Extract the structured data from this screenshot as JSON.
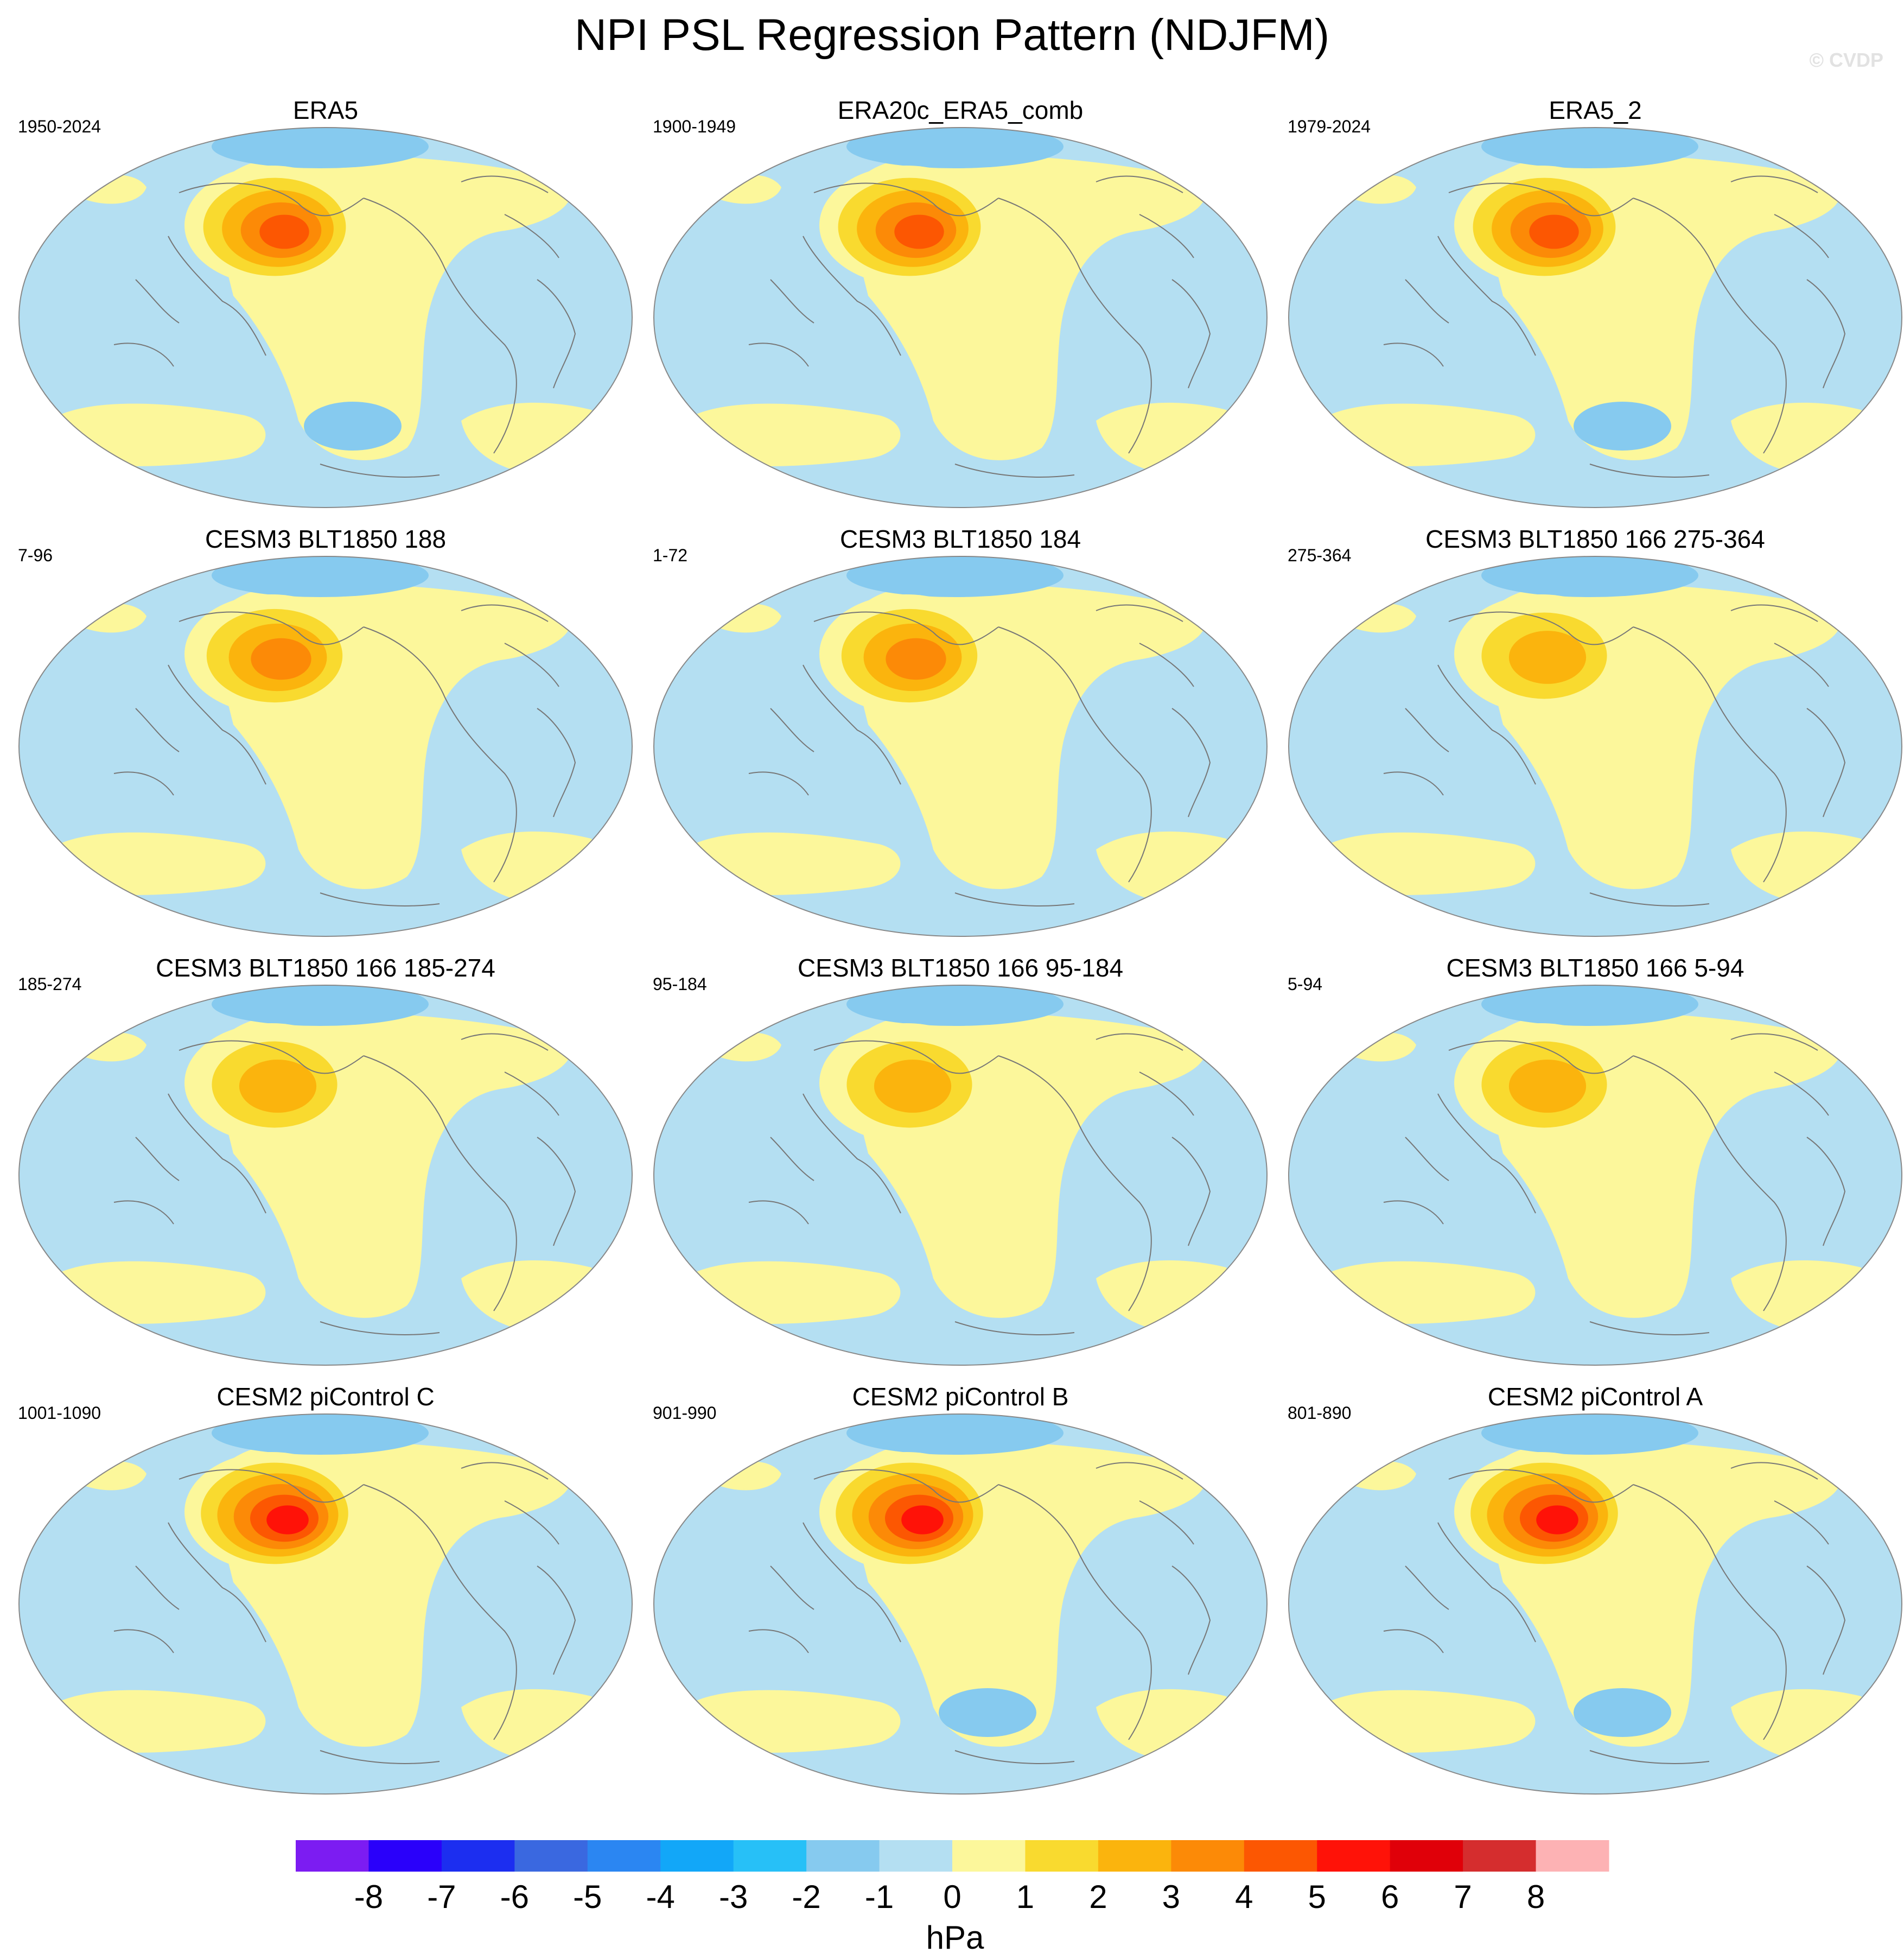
{
  "title": "NPI PSL Regression Pattern (NDJFM)",
  "watermark": "© CVDP",
  "colors": {
    "background": "#ffffff",
    "neg_light": "#b4dff2",
    "pos_light": "#fcf79b",
    "coast": "#777777",
    "outline": "#888888"
  },
  "panels": [
    {
      "title": "ERA5",
      "period": "1950-2024",
      "peak": 4.5,
      "south_low": -1.5
    },
    {
      "title": "ERA20c_ERA5_comb",
      "period": "1900-1949",
      "peak": 4.5,
      "south_low": 0
    },
    {
      "title": "ERA5_2",
      "period": "1979-2024",
      "peak": 4.5,
      "south_low": -2
    },
    {
      "title": "CESM3 BLT1850 188",
      "period": "7-96",
      "peak": 3.5,
      "south_low": 0
    },
    {
      "title": "CESM3 BLT1850 184",
      "period": "1-72",
      "peak": 3.5,
      "south_low": 0
    },
    {
      "title": "CESM3 BLT1850 166 275-364",
      "period": "275-364",
      "peak": 3.0,
      "south_low": 0
    },
    {
      "title": "CESM3 BLT1850 166 185-274",
      "period": "185-274",
      "peak": 3.0,
      "south_low": 0
    },
    {
      "title": "CESM3 BLT1850 166 95-184",
      "period": "95-184",
      "peak": 3.0,
      "south_low": 0
    },
    {
      "title": "CESM3 BLT1850 166 5-94",
      "period": "5-94",
      "peak": 3.0,
      "south_low": 0
    },
    {
      "title": "CESM2 piControl C",
      "period": "1001-1090",
      "peak": 5.5,
      "south_low": 0
    },
    {
      "title": "CESM2 piControl B",
      "period": "901-990",
      "peak": 5.5,
      "south_low": -1.5
    },
    {
      "title": "CESM2 piControl A",
      "period": "801-890",
      "peak": 5.5,
      "south_low": -1.5
    }
  ],
  "colorbar": {
    "units": "hPa",
    "labels": [
      "-8",
      "-7",
      "-6",
      "-5",
      "-4",
      "-3",
      "-2",
      "-1",
      "0",
      "1",
      "2",
      "3",
      "4",
      "5",
      "6",
      "7",
      "8"
    ],
    "levels": [
      -8,
      -7,
      -6,
      -5,
      -4,
      -3,
      -2,
      -1,
      0,
      1,
      2,
      3,
      4,
      5,
      6,
      7,
      8
    ],
    "colors": [
      "#7c1cf2",
      "#2a00fa",
      "#1c2ef0",
      "#3a68e0",
      "#2b86f2",
      "#12a7f8",
      "#27c0f7",
      "#86caef",
      "#b4dff2",
      "#fcf79b",
      "#f9da2f",
      "#fbb40d",
      "#fc8a07",
      "#fc5702",
      "#ff1208",
      "#e00009",
      "#d52d2e",
      "#fdb2b4"
    ]
  }
}
